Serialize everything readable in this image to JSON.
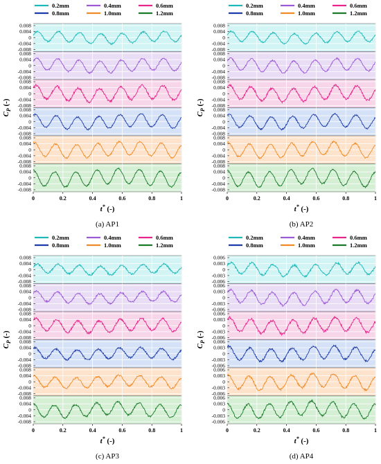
{
  "legend": [
    {
      "label": "0.2mm",
      "color": "#1fb8b8"
    },
    {
      "label": "0.4mm",
      "color": "#9b59d6"
    },
    {
      "label": "0.6mm",
      "color": "#e6248a"
    },
    {
      "label": "0.8mm",
      "color": "#1c3aa8"
    },
    {
      "label": "1.0mm",
      "color": "#f08a24"
    },
    {
      "label": "1.2mm",
      "color": "#1a7a2a"
    }
  ],
  "band_colors": [
    "#d3f4f4",
    "#e9ddf6",
    "#f8d6ea",
    "#d4e1f6",
    "#fde3cc",
    "#d5efd5"
  ],
  "y_axis_label": "C",
  "y_axis_sub": "P",
  "y_axis_unit": "(-)",
  "x_axis_label": "t",
  "x_axis_sup": "*",
  "x_axis_unit": "(-)",
  "chart_data": [
    {
      "type": "line",
      "caption_prefix": "(a)",
      "caption_name": "AP1",
      "x_ticks": [
        "0",
        "0.2",
        "0.4",
        "0.6",
        "0.8",
        "1"
      ],
      "xlim": [
        0,
        1
      ],
      "series": [
        {
          "name": "0.2mm",
          "ylim": [
            -0.008,
            0.008
          ],
          "ticks": [
            "0.008",
            "0.004",
            "0",
            "-0.004",
            "-0.008"
          ],
          "amplitude": 0.0034,
          "phase": 0.35,
          "noise": 0.0005,
          "seed": 11
        },
        {
          "name": "0.4mm",
          "ylim": [
            -0.008,
            0.008
          ],
          "ticks": [
            "0.008",
            "0.004",
            "0",
            "-0.004",
            "-0.008"
          ],
          "amplitude": 0.004,
          "phase": 0.55,
          "noise": 0.0005,
          "seed": 12
        },
        {
          "name": "0.6mm",
          "ylim": [
            -0.008,
            0.008
          ],
          "ticks": [
            "0.008",
            "0.004",
            "0",
            "-0.004",
            "-0.008"
          ],
          "amplitude": 0.0045,
          "phase": 0.75,
          "noise": 0.0007,
          "seed": 13
        },
        {
          "name": "0.8mm",
          "ylim": [
            -0.008,
            0.008
          ],
          "ticks": [
            "0.008",
            "0.004",
            "0",
            "-0.004",
            "-0.008"
          ],
          "amplitude": 0.0042,
          "phase": 1.0,
          "noise": 0.0005,
          "seed": 14
        },
        {
          "name": "1.0mm",
          "ylim": [
            -0.008,
            0.008
          ],
          "ticks": [
            "0.008",
            "0.004",
            "0",
            "-0.004",
            "-0.008"
          ],
          "amplitude": 0.0045,
          "phase": 1.25,
          "noise": 0.0005,
          "seed": 15
        },
        {
          "name": "1.2mm",
          "ylim": [
            -0.008,
            0.008
          ],
          "ticks": [
            "0.008",
            "0.004",
            "0",
            "-0.004",
            "-0.008"
          ],
          "amplitude": 0.005,
          "phase": 1.5,
          "noise": 0.0005,
          "seed": 16
        }
      ]
    },
    {
      "type": "line",
      "caption_prefix": "(b)",
      "caption_name": "AP2",
      "x_ticks": [
        "0",
        "0.2",
        "0.4",
        "0.6",
        "0.8",
        "1"
      ],
      "xlim": [
        0,
        1
      ],
      "series": [
        {
          "name": "0.2mm",
          "ylim": [
            -0.008,
            0.008
          ],
          "ticks": [
            "0.008",
            "0.004",
            "0",
            "-0.004",
            "-0.008"
          ],
          "amplitude": 0.0034,
          "phase": 0.4,
          "noise": 0.0005,
          "seed": 21
        },
        {
          "name": "0.4mm",
          "ylim": [
            -0.008,
            0.008
          ],
          "ticks": [
            "0.008",
            "0.004",
            "0",
            "-0.004",
            "-0.008"
          ],
          "amplitude": 0.004,
          "phase": 0.6,
          "noise": 0.0005,
          "seed": 22
        },
        {
          "name": "0.6mm",
          "ylim": [
            -0.008,
            0.008
          ],
          "ticks": [
            "0.008",
            "0.004",
            "0",
            "-0.004",
            "-0.008"
          ],
          "amplitude": 0.0045,
          "phase": 0.8,
          "noise": 0.0007,
          "seed": 23
        },
        {
          "name": "0.8mm",
          "ylim": [
            -0.008,
            0.008
          ],
          "ticks": [
            "0.008",
            "0.004",
            "0",
            "-0.004",
            "-0.008"
          ],
          "amplitude": 0.0042,
          "phase": 1.05,
          "noise": 0.0005,
          "seed": 24
        },
        {
          "name": "1.0mm",
          "ylim": [
            -0.008,
            0.008
          ],
          "ticks": [
            "0.008",
            "0.004",
            "0",
            "-0.004",
            "-0.008"
          ],
          "amplitude": 0.0045,
          "phase": 1.3,
          "noise": 0.0005,
          "seed": 25
        },
        {
          "name": "1.2mm",
          "ylim": [
            -0.008,
            0.008
          ],
          "ticks": [
            "0.008",
            "0.004",
            "0",
            "-0.004",
            "-0.008"
          ],
          "amplitude": 0.005,
          "phase": 1.55,
          "noise": 0.0005,
          "seed": 26
        }
      ]
    },
    {
      "type": "line",
      "caption_prefix": "(c)",
      "caption_name": "AP3",
      "x_ticks": [
        "0",
        "0.2",
        "0.4",
        "0.6",
        "0.8",
        "1"
      ],
      "xlim": [
        0,
        1
      ],
      "series": [
        {
          "name": "0.2mm",
          "ylim": [
            -0.008,
            0.008
          ],
          "ticks": [
            "0.008",
            "0.004",
            "0",
            "-0.004",
            "-0.008"
          ],
          "amplitude": 0.003,
          "phase": 0.45,
          "noise": 0.0006,
          "seed": 31
        },
        {
          "name": "0.4mm",
          "ylim": [
            -0.008,
            0.008
          ],
          "ticks": [
            "0.008",
            "0.004",
            "0",
            "-0.004",
            "-0.008"
          ],
          "amplitude": 0.0034,
          "phase": 0.65,
          "noise": 0.0006,
          "seed": 32
        },
        {
          "name": "0.6mm",
          "ylim": [
            -0.008,
            0.008
          ],
          "ticks": [
            "0.008",
            "0.004",
            "0",
            "-0.004",
            "-0.008"
          ],
          "amplitude": 0.004,
          "phase": 0.85,
          "noise": 0.0007,
          "seed": 33
        },
        {
          "name": "0.8mm",
          "ylim": [
            -0.008,
            0.008
          ],
          "ticks": [
            "0.008",
            "0.004",
            "0",
            "-0.004",
            "-0.008"
          ],
          "amplitude": 0.0034,
          "phase": 1.1,
          "noise": 0.0006,
          "seed": 34
        },
        {
          "name": "1.0mm",
          "ylim": [
            -0.008,
            0.008
          ],
          "ticks": [
            "0.008",
            "0.004",
            "0",
            "-0.004",
            "-0.008"
          ],
          "amplitude": 0.0036,
          "phase": 1.35,
          "noise": 0.0006,
          "seed": 35
        },
        {
          "name": "1.2mm",
          "ylim": [
            -0.008,
            0.008
          ],
          "ticks": [
            "0.008",
            "0.004",
            "0",
            "-0.004",
            "-0.008"
          ],
          "amplitude": 0.0042,
          "phase": 1.6,
          "noise": 0.0006,
          "seed": 36
        }
      ]
    },
    {
      "type": "line",
      "caption_prefix": "(d)",
      "caption_name": "AP4",
      "x_ticks": [
        "0",
        "0.2",
        "0.4",
        "0.6",
        "0.8",
        "1"
      ],
      "xlim": [
        0,
        1
      ],
      "series": [
        {
          "name": "0.2mm",
          "ylim": [
            -0.006,
            0.006
          ],
          "ticks": [
            "0.006",
            "0.003",
            "0",
            "-0.003",
            "-0.006"
          ],
          "amplitude": 0.0028,
          "phase": 0.5,
          "noise": 0.0005,
          "seed": 41
        },
        {
          "name": "0.4mm",
          "ylim": [
            -0.006,
            0.006
          ],
          "ticks": [
            "0.006",
            "0.003",
            "0",
            "-0.003",
            "-0.006"
          ],
          "amplitude": 0.0032,
          "phase": 0.7,
          "noise": 0.0005,
          "seed": 42
        },
        {
          "name": "0.6mm",
          "ylim": [
            -0.006,
            0.006
          ],
          "ticks": [
            "0.006",
            "0.003",
            "0",
            "-0.003",
            "-0.006"
          ],
          "amplitude": 0.0034,
          "phase": 0.9,
          "noise": 0.0006,
          "seed": 43
        },
        {
          "name": "0.8mm",
          "ylim": [
            -0.006,
            0.006
          ],
          "ticks": [
            "0.006",
            "0.003",
            "0",
            "-0.003",
            "-0.006"
          ],
          "amplitude": 0.0032,
          "phase": 1.15,
          "noise": 0.0005,
          "seed": 44
        },
        {
          "name": "1.0mm",
          "ylim": [
            -0.006,
            0.006
          ],
          "ticks": [
            "0.006",
            "0.003",
            "0",
            "-0.003",
            "-0.006"
          ],
          "amplitude": 0.0034,
          "phase": 1.4,
          "noise": 0.0005,
          "seed": 45
        },
        {
          "name": "1.2mm",
          "ylim": [
            -0.006,
            0.006
          ],
          "ticks": [
            "0.006",
            "0.003",
            "0",
            "-0.003",
            "-0.006"
          ],
          "amplitude": 0.0036,
          "phase": 1.65,
          "noise": 0.0005,
          "seed": 46
        }
      ]
    }
  ]
}
